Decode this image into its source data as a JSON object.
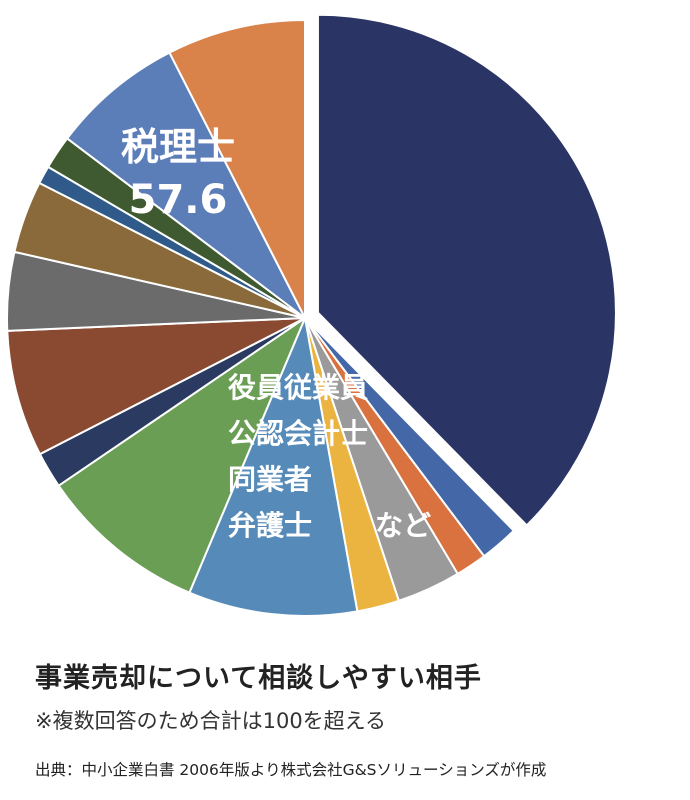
{
  "chart_data": {
    "type": "pie",
    "slices": [
      {
        "value": 57.6,
        "color": "#2a3566",
        "label": "税理士",
        "value_label": "57.6"
      },
      {
        "value": 3.2,
        "color": "#4467a8"
      },
      {
        "value": 2.6,
        "color": "#d9723f"
      },
      {
        "value": 5.3,
        "color": "#9a9a9a"
      },
      {
        "value": 3.5,
        "color": "#ebb33f"
      },
      {
        "value": 14.0,
        "color": "#558ab9"
      },
      {
        "value": 14.0,
        "color": "#6a9e54"
      },
      {
        "value": 3.0,
        "color": "#2a3a60"
      },
      {
        "value": 10.5,
        "color": "#8a4a32"
      },
      {
        "value": 6.5,
        "color": "#6b6b6b"
      },
      {
        "value": 6.0,
        "color": "#8a6a3a"
      },
      {
        "value": 1.5,
        "color": "#2f5a8a"
      },
      {
        "value": 2.8,
        "color": "#3f5a30"
      },
      {
        "value": 11.0,
        "color": "#5c7eb8"
      },
      {
        "value": 11.5,
        "color": "#d9824a"
      }
    ],
    "annotation_lines": [
      "役員従業員",
      "公認会計士",
      "同業者",
      "弁護士",
      "など"
    ]
  },
  "caption": {
    "title": "事業売却について相談しやすい相手",
    "note": "※複数回答のため合計は100を超える",
    "source": "出典：中小企業白書 2006年版より株式会社G&Sソリューションズが作成"
  }
}
